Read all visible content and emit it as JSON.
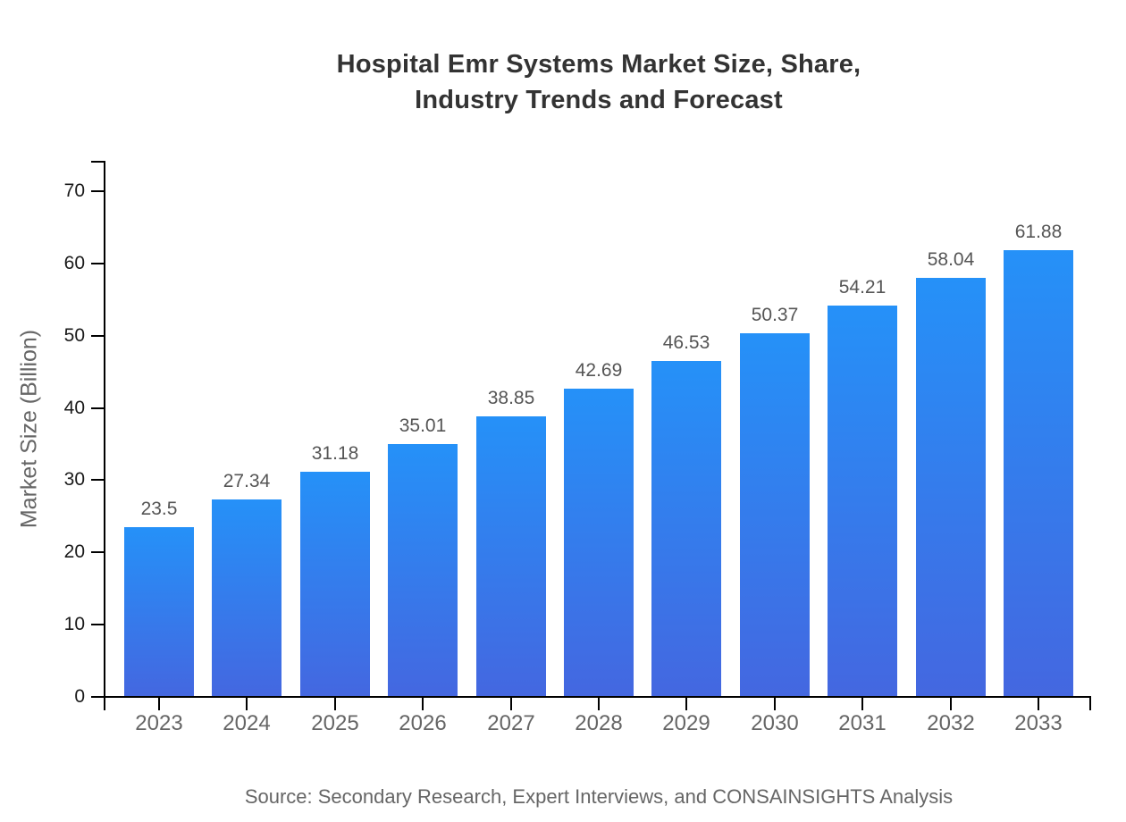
{
  "page": {
    "title_lines": [
      "Hospital Emr Systems Market Size, Share,",
      "Industry Trends and Forecast"
    ],
    "source_note": "Source: Secondary Research, Expert Interviews, and CONSAINSIGHTS Analysis"
  },
  "chart_data": {
    "type": "bar",
    "title": "Hospital Emr Systems Market Size, Share, Industry Trends and Forecast",
    "categories": [
      "2023",
      "2024",
      "2025",
      "2026",
      "2027",
      "2028",
      "2029",
      "2030",
      "2031",
      "2032",
      "2033"
    ],
    "values": [
      23.5,
      27.34,
      31.18,
      35.01,
      38.85,
      42.69,
      46.53,
      50.37,
      54.21,
      58.04,
      61.88
    ],
    "xlabel": "",
    "ylabel": "Market Size (Billion)",
    "ylim": [
      0,
      70
    ],
    "yticks": [
      0,
      10,
      20,
      30,
      40,
      50,
      60,
      70
    ],
    "grid": false,
    "legend": false,
    "value_labels": true,
    "colors": {
      "bar_gradient_top": "#2591f8",
      "bar_gradient_bottom": "#4467e0",
      "axis": "#000000",
      "title_text": "#333333",
      "tick_text": "#1a1a1a",
      "muted_text": "#666666",
      "value_label_text": "#555555"
    }
  }
}
